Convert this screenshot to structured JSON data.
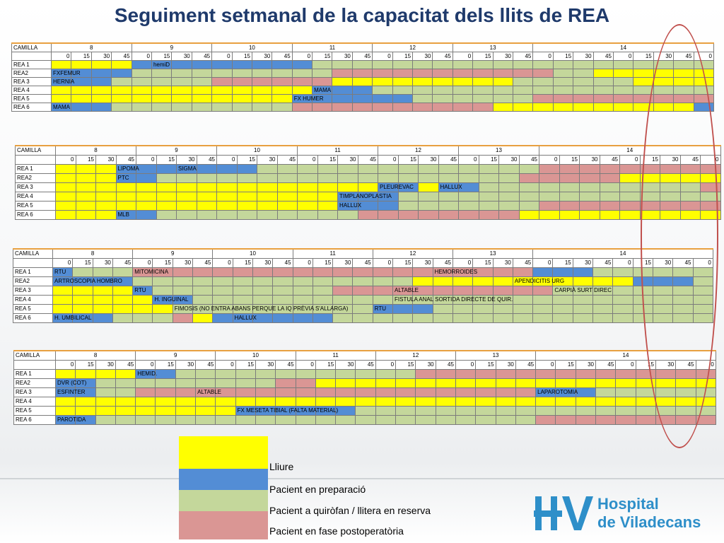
{
  "title": "Seguiment setmanal de la capacitat dels llits de REA",
  "corner_label": "CAMILLA",
  "hours": [
    "8",
    "9",
    "10",
    "11",
    "12",
    "13",
    "14"
  ],
  "quarters": [
    "0",
    "15",
    "30",
    "45"
  ],
  "colors": {
    "Y": "#ffff00",
    "B": "#538dd5",
    "G": "#c4d79b",
    "P": "#da9694"
  },
  "tables": [
    {
      "rows": [
        {
          "label": "REA 1",
          "cells": "YYYYBBBBBBBBBGGGGGGGGGGGGGGGGGGGG",
          "labels": [
            {
              "col": 5,
              "text": "hemiD"
            }
          ]
        },
        {
          "label": "REA2",
          "cells": "BBBBGGGGGGGGGGPPPPPPPPPPPGGYYYYYY",
          "labels": [
            {
              "col": 0,
              "text": "FXFEMUR"
            }
          ]
        },
        {
          "label": "REA 3",
          "cells": "BBBGGGGGPPPPPPYYYYYYYYYGGGGGGYYYY",
          "labels": [
            {
              "col": 0,
              "text": "HERNIA"
            }
          ]
        },
        {
          "label": "REA 4",
          "cells": "YYYYYYYYYYYYYBBBGGGGGGGGGGGGGGGGG",
          "labels": [
            {
              "col": 13,
              "text": "MAMA"
            }
          ]
        },
        {
          "label": "REA 5",
          "cells": "YYYYYYYYYYYYBBBBBBGGGGGGPPPPPPPPP",
          "labels": [
            {
              "col": 12,
              "text": "FX HUMER"
            }
          ]
        },
        {
          "label": "REA 6",
          "cells": "BBBGGGGGGGGGPPPPPPPPPPYYYYYYYYYYB",
          "labels": [
            {
              "col": 0,
              "text": "MAMA"
            }
          ]
        }
      ]
    },
    {
      "rows": [
        {
          "label": "REA 1",
          "cells": "YYYBBBBBBBGGGGGGGGGGGGGGPPPPPPPPP",
          "labels": [
            {
              "col": 3,
              "text": "LIPOMA"
            },
            {
              "col": 6,
              "text": "SIGMA"
            }
          ]
        },
        {
          "label": "REA2",
          "cells": "YYYBBGGGGGGGGGGGGGGGGGGPPPPPYYYYY",
          "labels": [
            {
              "col": 3,
              "text": "PTC"
            }
          ]
        },
        {
          "label": "REA 3",
          "cells": "YYYYYYYYYYYYYYYYBBYBBGGGGGGGGGGGP",
          "labels": [
            {
              "col": 16,
              "text": "PLEUREVAC"
            },
            {
              "col": 19,
              "text": "HALLUX"
            }
          ]
        },
        {
          "label": "REA 4",
          "cells": "YYYYYYYYYYYYYYBBBGGGGGGGGGGGGGGGG",
          "labels": [
            {
              "col": 14,
              "text": "TIMPLANOPLASTIA"
            }
          ]
        },
        {
          "label": "REA 5",
          "cells": "YYYYYYYYYYYYYYBBBGGGGGGGPPPPPPPPP",
          "labels": [
            {
              "col": 14,
              "text": "HALLUX"
            }
          ]
        },
        {
          "label": "REA 6",
          "cells": "YYYBBGGGGGGGGGGPPPPPPPPYYYYYYYYYY",
          "labels": [
            {
              "col": 3,
              "text": "MLB"
            }
          ]
        }
      ]
    },
    {
      "rows": [
        {
          "label": "REA 1",
          "cells": "BGGGPPPPPPPPPPPPPPPPPPPPBBBGGGGGG",
          "labels": [
            {
              "col": 0,
              "text": "RTU"
            },
            {
              "col": 4,
              "text": "MITOMICINA"
            },
            {
              "col": 19,
              "text": "HEMORROIDES"
            }
          ]
        },
        {
          "label": "REA2",
          "cells": "BBBBGGGGGGGGGGGGGGYYYYYYYYYYYBBBG",
          "labels": [
            {
              "col": 0,
              "text": "ARTROSCOPIA HOMBRO"
            },
            {
              "col": 23,
              "text": "APENDICITIS URG"
            }
          ]
        },
        {
          "label": "REA 3",
          "cells": "YYYYBGGGGGGGGGPPPPPPPPPPPGGGGGGGG",
          "labels": [
            {
              "col": 4,
              "text": "RTU"
            },
            {
              "col": 17,
              "text": "ALTABLE"
            },
            {
              "col": 25,
              "text": "CARPIÀ SURT DIREC"
            }
          ]
        },
        {
          "label": "REA 4",
          "cells": "YYYYYBBGGGGGGGGGGGGGGGGGGGGGGGGGG",
          "labels": [
            {
              "col": 5,
              "text": "H. INGUINAL"
            },
            {
              "col": 17,
              "text": "FISTULA ANAL SORTIDA DIRECTE DE QUIR."
            }
          ]
        },
        {
          "label": "REA 5",
          "cells": "YYYYYYGGGGGGGGGGBBBGGGGGGGGGGGGGG",
          "labels": [
            {
              "col": 6,
              "text": "FIMOSIS (NO ENTRA ABANS PERQUE LA IQ PRÈVIA S'ALLARGA)"
            },
            {
              "col": 16,
              "text": "RTU"
            }
          ]
        },
        {
          "label": "REA 6",
          "cells": "BBBGGGPYBBBBBBGGGGGGGGGGGGGGGGGGG",
          "labels": [
            {
              "col": 0,
              "text": "H. UMBILICAL"
            },
            {
              "col": 9,
              "text": "HALLUX"
            }
          ]
        }
      ]
    },
    {
      "rows": [
        {
          "label": "REA 1",
          "cells": "YYYYBBGGGGGGGGGGGGPPPPPPPPPPPPPPP",
          "labels": [
            {
              "col": 4,
              "text": "HEMID."
            }
          ]
        },
        {
          "label": "REA2",
          "cells": "BBGGGGGGGGGPPYYYYYYYYYYYYYYYYYYYY",
          "labels": [
            {
              "col": 0,
              "text": "DVR (COT)"
            }
          ]
        },
        {
          "label": "REA 3",
          "cells": "BBGGPPPPPPPPPPPPPPPPPPPPBBBGGGGGG",
          "labels": [
            {
              "col": 0,
              "text": "ESFINTER"
            },
            {
              "col": 7,
              "text": "ALTABLE"
            },
            {
              "col": 24,
              "text": "LAPAROTOMIA"
            }
          ]
        },
        {
          "label": "REA 4",
          "cells": "YYYYYYYYYYYYYYYYYYYYYYYYYYYYYYYYY",
          "labels": []
        },
        {
          "label": "REA 5",
          "cells": "YYYYYYYYYBBBBBBGGGGGGGGGGGGGGGGGG",
          "labels": [
            {
              "col": 9,
              "text": "FX MESETA TIBIAL (FALTA MATERIAL)"
            }
          ]
        },
        {
          "label": "REA 6",
          "cells": "BBGGGGGGGGGGGGGGGGGGGGGGPPPPPPPPP",
          "labels": [
            {
              "col": 0,
              "text": "PAROTIDA"
            }
          ]
        }
      ]
    }
  ],
  "legend": [
    {
      "key": "Y",
      "label": "Lliure"
    },
    {
      "key": "B",
      "label": "Pacient en preparació"
    },
    {
      "key": "G",
      "label": "Pacient a quiròfan / llitera en reserva"
    },
    {
      "key": "P",
      "label": "Pacient en fase postoperatòria"
    }
  ],
  "logo": {
    "line1": "Hospital",
    "line2": "de Viladecans"
  }
}
